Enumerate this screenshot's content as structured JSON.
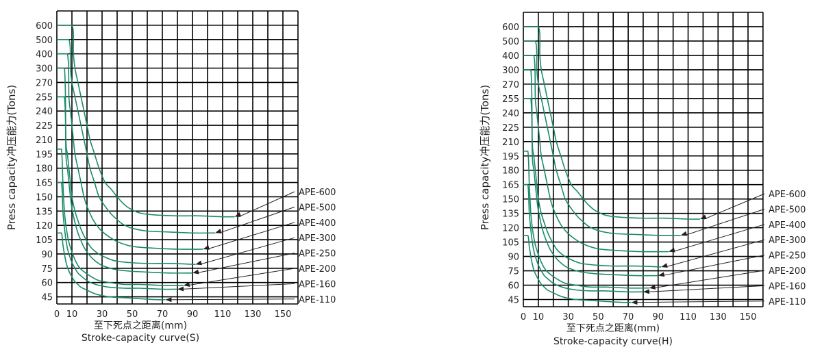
{
  "colors": {
    "curve": "#1a8a6a",
    "grid": "#000000",
    "text": "#231f20"
  },
  "chart_data": [
    {
      "type": "line",
      "title": "Stroke-capacity curve(S)",
      "xlabel": "至下死点之距离(mm)",
      "ylabel": "Press capacity冲压能力(Tons)",
      "x_ticks": [
        0,
        10,
        30,
        50,
        70,
        90,
        110,
        130,
        150
      ],
      "y_ticks": [
        45,
        60,
        75,
        90,
        105,
        120,
        135,
        150,
        165,
        180,
        195,
        210,
        225,
        240,
        255,
        270,
        300,
        400,
        500,
        600
      ],
      "series": [
        {
          "name": "APE-600",
          "stroke": [
            10,
            11,
            12,
            14,
            16,
            18,
            20,
            22,
            25,
            28,
            32,
            36,
            40,
            44,
            48,
            55,
            65,
            80,
            95,
            110,
            118
          ],
          "capacity": [
            600,
            400,
            300,
            270,
            255,
            240,
            225,
            210,
            195,
            180,
            165,
            158,
            150,
            143,
            138,
            133,
            131,
            130,
            130,
            129,
            129
          ]
        },
        {
          "name": "APE-500",
          "stroke": [
            8,
            9,
            10,
            12,
            14,
            16,
            18,
            20,
            22,
            25,
            28,
            32,
            36,
            40,
            44,
            50,
            60,
            75,
            90,
            105
          ],
          "capacity": [
            500,
            300,
            270,
            255,
            240,
            225,
            210,
            195,
            180,
            165,
            150,
            140,
            132,
            126,
            121,
            117,
            114,
            113,
            112,
            112
          ]
        },
        {
          "name": "APE-400",
          "stroke": [
            7,
            8,
            9,
            10,
            11,
            12,
            14,
            16,
            18,
            20,
            24,
            28,
            32,
            40,
            50,
            65,
            80,
            97
          ],
          "capacity": [
            400,
            255,
            240,
            225,
            210,
            195,
            180,
            165,
            150,
            140,
            126,
            117,
            111,
            103,
            98,
            96,
            95,
            95
          ]
        },
        {
          "name": "APE-300",
          "stroke": [
            5,
            6,
            7,
            8,
            9,
            10,
            12,
            14,
            16,
            18,
            22,
            26,
            30,
            38,
            48,
            60,
            75,
            92
          ],
          "capacity": [
            300,
            210,
            195,
            180,
            165,
            150,
            135,
            125,
            116,
            109,
            98,
            92,
            88,
            83,
            81,
            80,
            80,
            79
          ]
        },
        {
          "name": "APE-250",
          "stroke": [
            5,
            6,
            7,
            8,
            9,
            10,
            12,
            14,
            16,
            18,
            22,
            26,
            30,
            38,
            48,
            60,
            75,
            90
          ],
          "capacity": [
            255,
            195,
            180,
            165,
            150,
            138,
            123,
            112,
            104,
            97,
            88,
            82,
            78,
            74,
            72,
            71,
            70,
            70
          ]
        },
        {
          "name": "APE-200",
          "stroke": [
            3,
            4,
            5,
            6,
            7,
            8,
            10,
            12,
            14,
            16,
            20,
            24,
            28,
            35,
            45,
            55,
            70,
            84
          ],
          "capacity": [
            200,
            165,
            135,
            120,
            110,
            102,
            92,
            84,
            78,
            74,
            69,
            65,
            62,
            60,
            58,
            58,
            57,
            57
          ]
        },
        {
          "name": "APE-160",
          "stroke": [
            3,
            4,
            5,
            6,
            7,
            8,
            10,
            12,
            14,
            16,
            20,
            24,
            28,
            35,
            45,
            55,
            70,
            80
          ],
          "capacity": [
            165,
            135,
            118,
            105,
            96,
            90,
            81,
            75,
            70,
            67,
            62,
            59,
            57,
            55,
            54,
            54,
            53,
            53
          ]
        },
        {
          "name": "APE-110",
          "stroke": [
            3,
            4,
            5,
            6,
            7,
            8,
            10,
            12,
            14,
            16,
            20,
            24,
            28,
            35,
            45,
            55,
            66,
            72
          ],
          "capacity": [
            112,
            100,
            90,
            82,
            76,
            72,
            66,
            61,
            58,
            55,
            52,
            49,
            47,
            45,
            44,
            43,
            42,
            42
          ]
        }
      ]
    },
    {
      "type": "line",
      "title": "Stroke-capacity curve(H)",
      "xlabel": "至下死点之距离(mm)",
      "ylabel": "Press capacity冲压能力(Tons)",
      "x_ticks": [
        0,
        10,
        30,
        50,
        70,
        90,
        110,
        130,
        150
      ],
      "y_ticks": [
        45,
        60,
        75,
        90,
        105,
        120,
        135,
        150,
        165,
        180,
        195,
        210,
        225,
        240,
        255,
        270,
        300,
        400,
        500,
        600
      ],
      "series": [
        {
          "name": "APE-600",
          "stroke": [
            10,
            11,
            12,
            14,
            16,
            18,
            20,
            22,
            25,
            28,
            32,
            36,
            40,
            44,
            48,
            55,
            65,
            80,
            95,
            110,
            118
          ],
          "capacity": [
            600,
            400,
            300,
            270,
            255,
            240,
            225,
            210,
            195,
            180,
            165,
            158,
            150,
            143,
            138,
            133,
            131,
            130,
            130,
            129,
            129
          ]
        },
        {
          "name": "APE-500",
          "stroke": [
            8,
            9,
            10,
            12,
            14,
            16,
            18,
            20,
            22,
            25,
            28,
            32,
            36,
            40,
            44,
            50,
            60,
            75,
            90,
            105
          ],
          "capacity": [
            500,
            300,
            270,
            255,
            240,
            225,
            210,
            195,
            180,
            165,
            150,
            140,
            132,
            126,
            121,
            117,
            114,
            113,
            112,
            112
          ]
        },
        {
          "name": "APE-400",
          "stroke": [
            7,
            8,
            9,
            10,
            11,
            12,
            14,
            16,
            18,
            20,
            24,
            28,
            32,
            40,
            50,
            65,
            80,
            97
          ],
          "capacity": [
            400,
            255,
            240,
            225,
            210,
            195,
            180,
            165,
            150,
            140,
            126,
            117,
            111,
            103,
            98,
            96,
            95,
            95
          ]
        },
        {
          "name": "APE-300",
          "stroke": [
            5,
            6,
            7,
            8,
            9,
            10,
            12,
            14,
            16,
            18,
            22,
            26,
            30,
            38,
            48,
            60,
            75,
            92
          ],
          "capacity": [
            300,
            210,
            195,
            180,
            165,
            150,
            135,
            125,
            116,
            109,
            98,
            92,
            88,
            83,
            81,
            80,
            80,
            79
          ]
        },
        {
          "name": "APE-250",
          "stroke": [
            5,
            6,
            7,
            8,
            9,
            10,
            12,
            14,
            16,
            18,
            22,
            26,
            30,
            38,
            48,
            60,
            75,
            90
          ],
          "capacity": [
            255,
            195,
            180,
            165,
            150,
            138,
            123,
            112,
            104,
            97,
            88,
            82,
            78,
            74,
            72,
            71,
            70,
            70
          ]
        },
        {
          "name": "APE-200",
          "stroke": [
            3,
            4,
            5,
            6,
            7,
            8,
            10,
            12,
            14,
            16,
            20,
            24,
            28,
            35,
            45,
            55,
            70,
            84
          ],
          "capacity": [
            200,
            165,
            135,
            120,
            110,
            102,
            92,
            84,
            78,
            74,
            69,
            65,
            62,
            60,
            58,
            58,
            57,
            57
          ]
        },
        {
          "name": "APE-160",
          "stroke": [
            3,
            4,
            5,
            6,
            7,
            8,
            10,
            12,
            14,
            16,
            20,
            24,
            28,
            35,
            45,
            55,
            70,
            80
          ],
          "capacity": [
            165,
            135,
            118,
            105,
            96,
            90,
            81,
            75,
            70,
            67,
            62,
            59,
            57,
            55,
            54,
            54,
            53,
            53
          ]
        },
        {
          "name": "APE-110",
          "stroke": [
            3,
            4,
            5,
            6,
            7,
            8,
            10,
            12,
            14,
            16,
            20,
            24,
            28,
            35,
            45,
            55,
            66,
            72
          ],
          "capacity": [
            112,
            100,
            90,
            82,
            76,
            72,
            66,
            61,
            58,
            55,
            52,
            49,
            47,
            45,
            44,
            43,
            42,
            42
          ]
        }
      ]
    }
  ]
}
